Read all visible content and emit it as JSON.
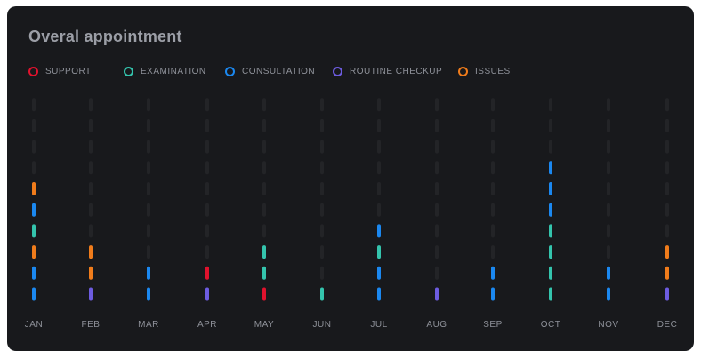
{
  "title": "Overal appointment",
  "colors": {
    "SUPPORT": "#e0122d",
    "EXAMINATION": "#34c4ad",
    "CONSULTATION": "#1b88f0",
    "ROUTINE CHECKUP": "#6d5ce0",
    "ISSUES": "#f07c1b",
    "empty": "#232427",
    "card": "#18191c"
  },
  "chart_data": {
    "type": "bar",
    "title": "Overal appointment",
    "legend": "top-left",
    "categories": [
      "JAN",
      "FEB",
      "MAR",
      "APR",
      "MAY",
      "JUN",
      "JUL",
      "AUG",
      "SEP",
      "OCT",
      "NOV",
      "DEC"
    ],
    "series": [
      {
        "name": "SUPPORT",
        "values": [
          0,
          0,
          0,
          1,
          1,
          0,
          0,
          0,
          0,
          0,
          0,
          0
        ]
      },
      {
        "name": "EXAMINATION",
        "values": [
          1,
          0,
          0,
          0,
          2,
          1,
          1,
          0,
          0,
          4,
          0,
          0
        ]
      },
      {
        "name": "CONSULTATION",
        "values": [
          3,
          0,
          2,
          0,
          0,
          0,
          3,
          0,
          2,
          3,
          2,
          0
        ]
      },
      {
        "name": "ROUTINE CHECKUP",
        "values": [
          0,
          1,
          0,
          1,
          0,
          0,
          0,
          1,
          0,
          0,
          0,
          1
        ]
      },
      {
        "name": "ISSUES",
        "values": [
          2,
          2,
          0,
          0,
          0,
          0,
          0,
          0,
          0,
          0,
          0,
          2
        ]
      }
    ],
    "stacks": [
      [
        "CONSULTATION",
        "CONSULTATION",
        "ISSUES",
        "EXAMINATION",
        "CONSULTATION",
        "ISSUES"
      ],
      [
        "ROUTINE CHECKUP",
        "ISSUES",
        "ISSUES"
      ],
      [
        "CONSULTATION",
        "CONSULTATION"
      ],
      [
        "ROUTINE CHECKUP",
        "SUPPORT"
      ],
      [
        "SUPPORT",
        "EXAMINATION",
        "EXAMINATION"
      ],
      [
        "EXAMINATION"
      ],
      [
        "CONSULTATION",
        "CONSULTATION",
        "EXAMINATION",
        "CONSULTATION"
      ],
      [
        "ROUTINE CHECKUP"
      ],
      [
        "CONSULTATION",
        "CONSULTATION"
      ],
      [
        "EXAMINATION",
        "EXAMINATION",
        "EXAMINATION",
        "EXAMINATION",
        "CONSULTATION",
        "CONSULTATION",
        "CONSULTATION"
      ],
      [
        "CONSULTATION",
        "CONSULTATION"
      ],
      [
        "ROUTINE CHECKUP",
        "ISSUES",
        "ISSUES"
      ]
    ],
    "max_slots": 10,
    "grid": false
  }
}
